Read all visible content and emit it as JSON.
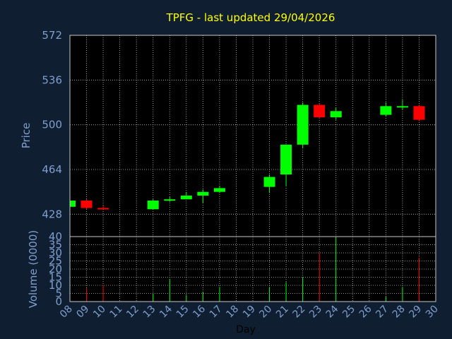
{
  "chart_data": {
    "type": "candlestick",
    "title": "TPFG - last updated 29/04/2026",
    "xlabel": "Day",
    "price_panel": {
      "ylabel": "Price",
      "yticks": [
        428,
        464,
        500,
        536,
        572
      ],
      "ylim": [
        410,
        572
      ]
    },
    "volume_panel": {
      "ylabel": "Volume (0000)",
      "yticks": [
        0,
        5,
        10,
        15,
        20,
        25,
        30,
        35,
        40
      ],
      "ylim": [
        0,
        40
      ]
    },
    "x_tick_labels": [
      "08",
      "09",
      "10",
      "11",
      "12",
      "13",
      "14",
      "15",
      "16",
      "17",
      "18",
      "19",
      "20",
      "21",
      "22",
      "23",
      "24",
      "25",
      "26",
      "27",
      "28",
      "29",
      "30"
    ],
    "grid": true,
    "colors": {
      "background": "#0f1e30",
      "plot_bg": "#000000",
      "up": "#00ff00",
      "down": "#ff0000",
      "title": "#ffff00",
      "axis_text": "#7f9fcf",
      "grid": "#c0c0c0"
    },
    "candles": [
      {
        "day": "08",
        "open": 434,
        "high": 440,
        "low": 433,
        "close": 439,
        "volume": 0
      },
      {
        "day": "09",
        "open": 439,
        "high": 440,
        "low": 432,
        "close": 433,
        "volume": 8
      },
      {
        "day": "10",
        "open": 433,
        "high": 435,
        "low": 432,
        "close": 432,
        "volume": 10
      },
      {
        "day": "13",
        "open": 432,
        "high": 440,
        "low": 432,
        "close": 439,
        "volume": 5
      },
      {
        "day": "14",
        "open": 439,
        "high": 442,
        "low": 438,
        "close": 440,
        "volume": 14
      },
      {
        "day": "15",
        "open": 440,
        "high": 446,
        "low": 440,
        "close": 443,
        "volume": 4
      },
      {
        "day": "16",
        "open": 443,
        "high": 448,
        "low": 437,
        "close": 446,
        "volume": 6
      },
      {
        "day": "17",
        "open": 446,
        "high": 451,
        "low": 445,
        "close": 449,
        "volume": 9
      },
      {
        "day": "20",
        "open": 450,
        "high": 460,
        "low": 445,
        "close": 458,
        "volume": 9
      },
      {
        "day": "21",
        "open": 460,
        "high": 484,
        "low": 451,
        "close": 484,
        "volume": 12
      },
      {
        "day": "22",
        "open": 484,
        "high": 518,
        "low": 481,
        "close": 516,
        "volume": 15
      },
      {
        "day": "23",
        "open": 516,
        "high": 517,
        "low": 505,
        "close": 506,
        "volume": 30
      },
      {
        "day": "24",
        "open": 506,
        "high": 514,
        "low": 504,
        "close": 511,
        "volume": 40
      },
      {
        "day": "27",
        "open": 508,
        "high": 518,
        "low": 507,
        "close": 515,
        "volume": 3
      },
      {
        "day": "28",
        "open": 514,
        "high": 520,
        "low": 512,
        "close": 515,
        "volume": 9
      },
      {
        "day": "29",
        "open": 515,
        "high": 516,
        "low": 503,
        "close": 504,
        "volume": 27
      }
    ]
  }
}
